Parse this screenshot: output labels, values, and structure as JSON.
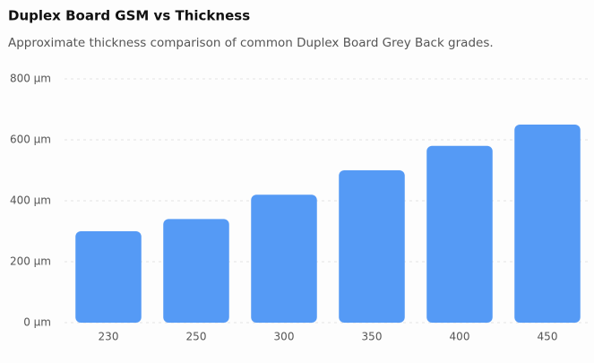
{
  "chart_data": {
    "type": "bar",
    "title": "Duplex Board GSM vs Thickness",
    "subtitle": "Approximate thickness comparison of common Duplex Board Grey Back grades.",
    "categories": [
      "230",
      "250",
      "300",
      "350",
      "400",
      "450"
    ],
    "values": [
      300,
      340,
      420,
      500,
      580,
      650
    ],
    "color": "#559af5",
    "ylim": [
      0,
      800
    ],
    "yticks": [
      {
        "value": 0,
        "label": "0 µm"
      },
      {
        "value": 200,
        "label": "200 µm"
      },
      {
        "value": 400,
        "label": "400 µm"
      },
      {
        "value": 600,
        "label": "600 µm"
      },
      {
        "value": 800,
        "label": "800 µm"
      }
    ],
    "grid": true
  }
}
